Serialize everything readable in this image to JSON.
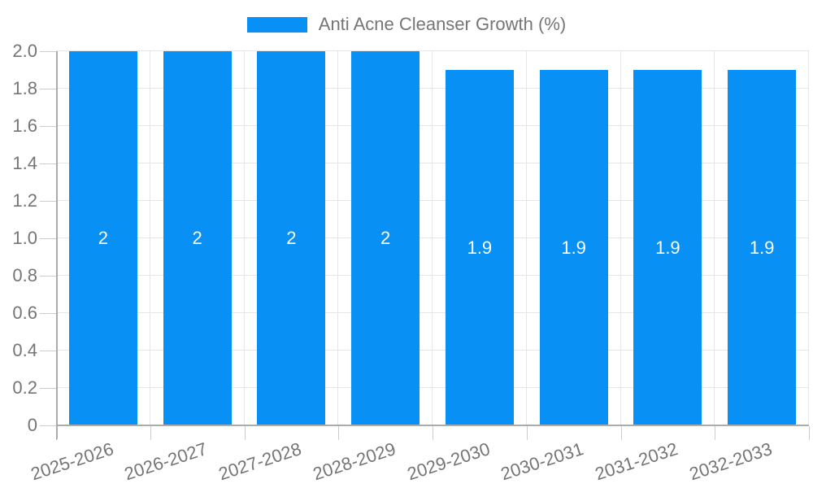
{
  "chart_data": {
    "type": "bar",
    "legend": {
      "label": "Anti Acne Cleanser Growth (%)",
      "position": "top-center"
    },
    "categories": [
      "2025-2026",
      "2026-2027",
      "2027-2028",
      "2028-2029",
      "2029-2030",
      "2030-2031",
      "2031-2032",
      "2032-2033"
    ],
    "series": [
      {
        "name": "Anti Acne Cleanser Growth (%)",
        "values": [
          2,
          2,
          2,
          2,
          1.9,
          1.9,
          1.9,
          1.9
        ]
      }
    ],
    "bar_labels": [
      "2",
      "2",
      "2",
      "2",
      "1.9",
      "1.9",
      "1.9",
      "1.9"
    ],
    "ylim": [
      0,
      2
    ],
    "ytick_step": 0.2,
    "ytick_labels": [
      "0",
      "0.2",
      "0.4",
      "0.6",
      "0.8",
      "1.0",
      "1.2",
      "1.4",
      "1.6",
      "1.8",
      "2.0"
    ],
    "grid": "horizontal and vertical category boundaries",
    "xlabel": "",
    "ylabel": "",
    "colors": {
      "bar": "#0890f5",
      "bar_label": "#ffffff",
      "text": "#757575",
      "grid": "#e6e6e6",
      "axis": "#ababab",
      "tick": "#cccccc",
      "background": "#ffffff"
    }
  }
}
